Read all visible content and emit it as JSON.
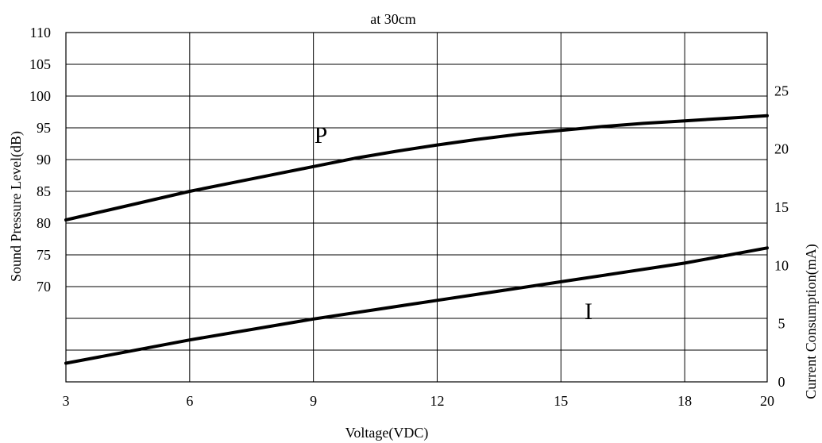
{
  "chart_data": {
    "type": "line",
    "title": "at 30cm",
    "xlabel": "Voltage(VDC)",
    "ylabel": "Sound Pressure Level(dB)",
    "y2label": "Current Consumption(mA)",
    "x_ticks": [
      "3",
      "6",
      "9",
      "12",
      "15",
      "18",
      "20"
    ],
    "x_tick_values": [
      3,
      6,
      9,
      12,
      15,
      18,
      20
    ],
    "xlim": [
      3,
      20
    ],
    "y_ticks": [
      "110",
      "105",
      "100",
      "95",
      "90",
      "85",
      "80",
      "75",
      "70"
    ],
    "y_tick_values": [
      110,
      105,
      100,
      95,
      90,
      85,
      80,
      75,
      70
    ],
    "ylim": [
      55,
      110
    ],
    "y2_ticks": [
      "25",
      "20",
      "15",
      "10",
      "5",
      "0"
    ],
    "y2_tick_values": [
      25,
      20,
      15,
      10,
      5,
      0
    ],
    "y2lim": [
      0,
      30
    ],
    "grid": true,
    "series": [
      {
        "name": "P",
        "axis": "left",
        "x": [
          3,
          4,
          5,
          6,
          7,
          8,
          9,
          10,
          11,
          12,
          13,
          14,
          15,
          16,
          17,
          18,
          19,
          20
        ],
        "values": [
          80.5,
          82.0,
          83.5,
          85.0,
          86.3,
          87.6,
          88.9,
          90.2,
          91.3,
          92.3,
          93.2,
          94.0,
          94.6,
          95.2,
          95.7,
          96.1,
          96.5,
          96.9
        ]
      },
      {
        "name": "I",
        "axis": "right",
        "x": [
          3,
          6,
          9,
          12,
          15,
          18,
          20
        ],
        "values": [
          1.6,
          3.6,
          5.4,
          7.0,
          8.6,
          10.2,
          11.5
        ]
      }
    ]
  }
}
